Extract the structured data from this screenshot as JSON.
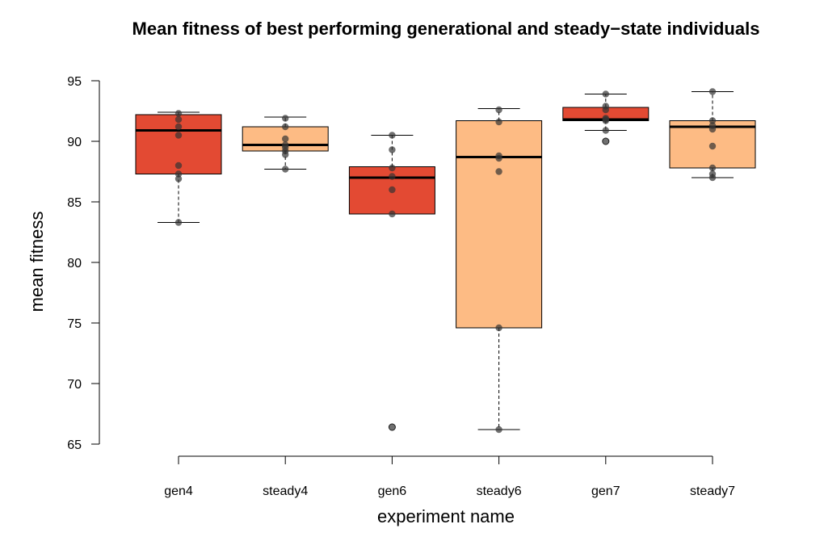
{
  "chart_data": {
    "type": "boxplot",
    "title": "Mean fitness of best performing generational and steady−state individuals",
    "xlabel": "experiment name",
    "ylabel": "mean fitness",
    "ylim": [
      65,
      95
    ],
    "yticks": [
      65,
      70,
      75,
      80,
      85,
      90,
      95
    ],
    "grid": false,
    "legend": "none",
    "colors": {
      "gen": "#e34a33",
      "steady": "#fdbb84",
      "points": "#333333"
    },
    "categories": [
      "gen4",
      "steady4",
      "gen6",
      "steady6",
      "gen7",
      "steady7"
    ],
    "boxes": [
      {
        "name": "gen4",
        "whisker_low": 83.3,
        "q1": 87.3,
        "median": 90.9,
        "q3": 92.2,
        "whisker_high": 92.4,
        "outliers": [],
        "points": [
          92.3,
          91.8,
          91.2,
          90.5,
          88.0,
          87.3,
          86.9,
          83.3
        ],
        "color": "gen"
      },
      {
        "name": "steady4",
        "whisker_low": 87.7,
        "q1": 89.2,
        "median": 89.7,
        "q3": 91.2,
        "whisker_high": 92.0,
        "outliers": [],
        "points": [
          91.9,
          91.2,
          90.2,
          89.7,
          89.5,
          89.2,
          88.9,
          87.7
        ],
        "color": "steady"
      },
      {
        "name": "gen6",
        "whisker_low": 84.0,
        "q1": 84.0,
        "median": 87.0,
        "q3": 87.9,
        "whisker_high": 90.5,
        "outliers": [
          66.4
        ],
        "points": [
          90.5,
          89.3,
          87.8,
          87.1,
          86.0,
          84.0,
          66.4
        ],
        "color": "gen"
      },
      {
        "name": "steady6",
        "whisker_low": 66.2,
        "q1": 74.6,
        "median": 88.7,
        "q3": 91.7,
        "whisker_high": 92.7,
        "outliers": [],
        "points": [
          92.6,
          91.6,
          88.8,
          88.6,
          87.5,
          74.6,
          66.2
        ],
        "color": "steady"
      },
      {
        "name": "gen7",
        "whisker_low": 90.9,
        "q1": 91.7,
        "median": 91.8,
        "q3": 92.8,
        "whisker_high": 93.9,
        "outliers": [
          90.0
        ],
        "points": [
          93.9,
          92.9,
          92.6,
          91.9,
          91.8,
          91.7,
          90.9,
          90.0
        ],
        "color": "gen"
      },
      {
        "name": "steady7",
        "whisker_low": 87.0,
        "q1": 87.8,
        "median": 91.2,
        "q3": 91.7,
        "whisker_high": 94.1,
        "outliers": [],
        "points": [
          94.1,
          91.7,
          91.3,
          91.0,
          89.6,
          87.8,
          87.3,
          87.0
        ],
        "color": "steady"
      }
    ]
  }
}
